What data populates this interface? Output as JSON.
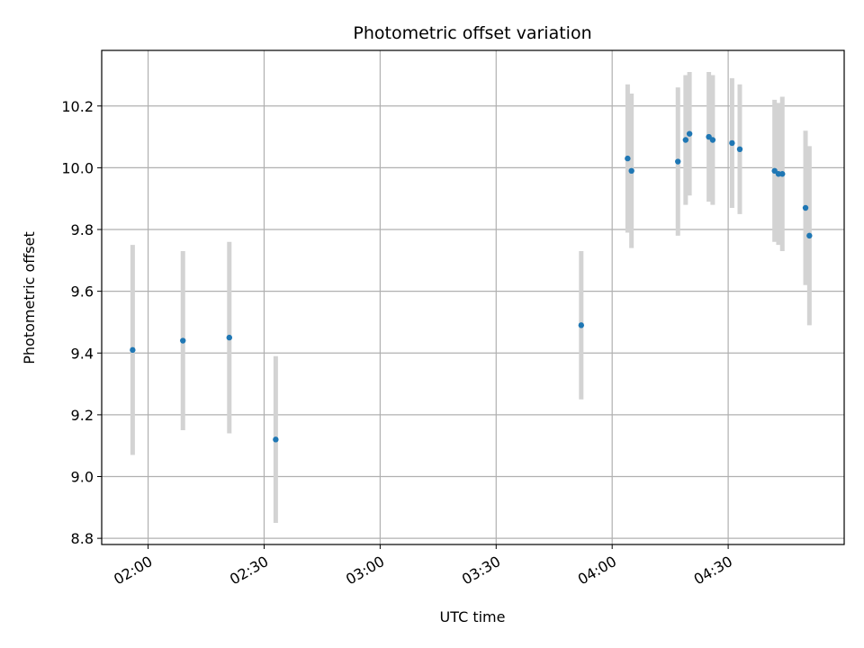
{
  "chart_data": {
    "type": "scatter",
    "title": "Photometric offset variation",
    "xlabel": "UTC time",
    "ylabel": "Photometric offset",
    "grid": true,
    "x_unit": "UTC HH:MM",
    "xlim": [
      "01:48",
      "05:00"
    ],
    "ylim": [
      8.78,
      10.38
    ],
    "x_ticks": [
      "02:00",
      "02:30",
      "03:00",
      "03:30",
      "04:00",
      "04:30"
    ],
    "y_ticks": [
      8.8,
      9.0,
      9.2,
      9.4,
      9.6,
      9.8,
      10.0,
      10.2
    ],
    "y_tick_labels": [
      "8.8",
      "9.0",
      "9.2",
      "9.4",
      "9.6",
      "9.8",
      "10.0",
      "10.2"
    ],
    "marker_color": "#1f77b4",
    "errorbar_color": "#d3d3d3",
    "points": [
      {
        "x": "01:56",
        "y": 9.41,
        "err": 0.34
      },
      {
        "x": "02:09",
        "y": 9.44,
        "err": 0.29
      },
      {
        "x": "02:21",
        "y": 9.45,
        "err": 0.31
      },
      {
        "x": "02:33",
        "y": 9.12,
        "err": 0.27
      },
      {
        "x": "03:52",
        "y": 9.49,
        "err": 0.24
      },
      {
        "x": "04:04",
        "y": 10.03,
        "err": 0.24
      },
      {
        "x": "04:05",
        "y": 9.99,
        "err": 0.25
      },
      {
        "x": "04:17",
        "y": 10.02,
        "err": 0.24
      },
      {
        "x": "04:19",
        "y": 10.09,
        "err": 0.21
      },
      {
        "x": "04:20",
        "y": 10.11,
        "err": 0.2
      },
      {
        "x": "04:25",
        "y": 10.1,
        "err": 0.21
      },
      {
        "x": "04:26",
        "y": 10.09,
        "err": 0.21
      },
      {
        "x": "04:31",
        "y": 10.08,
        "err": 0.21
      },
      {
        "x": "04:33",
        "y": 10.06,
        "err": 0.21
      },
      {
        "x": "04:42",
        "y": 9.99,
        "err": 0.23
      },
      {
        "x": "04:43",
        "y": 9.98,
        "err": 0.23
      },
      {
        "x": "04:44",
        "y": 9.98,
        "err": 0.25
      },
      {
        "x": "04:50",
        "y": 9.87,
        "err": 0.25
      },
      {
        "x": "04:51",
        "y": 9.78,
        "err": 0.29
      }
    ]
  }
}
